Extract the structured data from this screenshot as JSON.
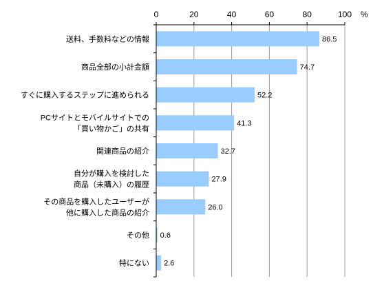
{
  "chart_data": {
    "type": "bar",
    "orientation": "horizontal",
    "title": "",
    "xlabel": "",
    "ylabel": "",
    "unit": "%",
    "xlim": [
      0,
      100
    ],
    "xticks": [
      0,
      20,
      40,
      60,
      80,
      100
    ],
    "grid": true,
    "bar_color": "#99ccff",
    "categories": [
      [
        "送料、手数料などの情報"
      ],
      [
        "商品全部の小計金額"
      ],
      [
        "すぐに購入するステップに進められる"
      ],
      [
        "PCサイトとモバイルサイトでの",
        "「買い物かご」の共有"
      ],
      [
        "関連商品の紹介"
      ],
      [
        "自分が購入を検討した",
        "商品（未購入）の履歴"
      ],
      [
        "その商品を購入したユーザーが",
        "他に購入した商品の紹介"
      ],
      [
        "その他"
      ],
      [
        "特にない"
      ]
    ],
    "values": [
      86.5,
      74.7,
      52.2,
      41.3,
      32.7,
      27.9,
      26.0,
      0.6,
      2.6
    ],
    "value_labels": [
      "86.5",
      "74.7",
      "52.2",
      "41.3",
      "32.7",
      "27.9",
      "26.0",
      "0.6",
      "2.6"
    ]
  }
}
